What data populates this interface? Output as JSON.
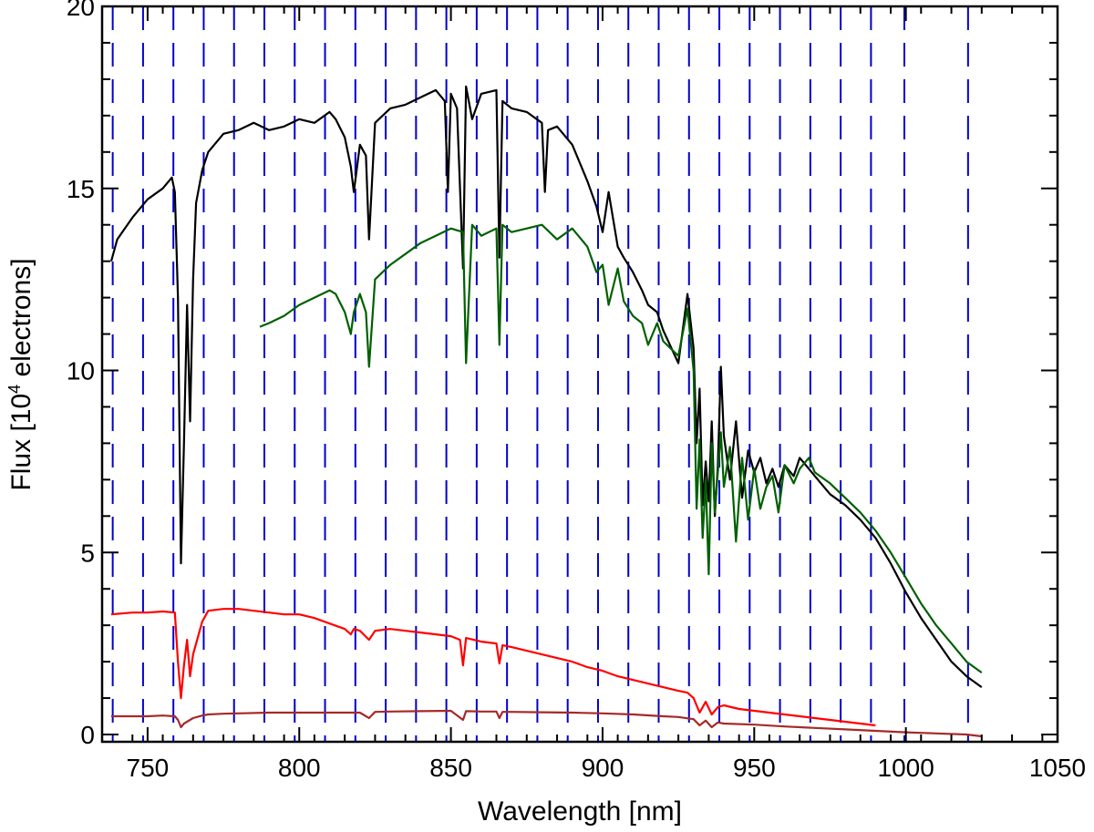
{
  "chart_data": {
    "type": "line",
    "xlabel": "Wavelength [nm]",
    "ylabel_prefix": "Flux [10",
    "ylabel_sup": "4",
    "ylabel_suffix": " electrons]",
    "xlim": [
      735,
      1050
    ],
    "ylim": [
      -0.2,
      20
    ],
    "x_ticks": [
      750,
      800,
      850,
      900,
      950,
      1000,
      1050
    ],
    "y_ticks": [
      0,
      5,
      10,
      15,
      20
    ],
    "grid": false,
    "marker_lines": {
      "color": "#0000cc",
      "style": "dashed",
      "x": [
        738.5,
        748.5,
        758.5,
        768.5,
        778.5,
        788.5,
        798.5,
        808.5,
        818.5,
        828.5,
        838.5,
        848.5,
        858.5,
        868.5,
        878.5,
        888.5,
        898.5,
        908.5,
        918.5,
        928.5,
        938.5,
        948.5,
        958.5,
        968.5,
        978.5,
        988.5,
        999.5,
        1020.5
      ]
    },
    "series": [
      {
        "color": "#000000",
        "x": [
          738,
          740,
          745,
          750,
          755,
          758,
          759,
          760,
          761,
          762,
          763,
          764,
          765,
          766,
          768,
          770,
          775,
          780,
          785,
          790,
          795,
          800,
          805,
          810,
          812,
          815,
          817,
          818,
          820,
          822,
          823,
          825,
          830,
          835,
          840,
          845,
          848,
          849,
          850,
          852,
          854,
          855,
          857,
          860,
          865,
          866,
          867,
          870,
          875,
          880,
          881,
          882,
          885,
          890,
          895,
          898,
          900,
          902,
          905,
          907,
          910,
          913,
          915,
          918,
          920,
          925,
          928,
          930,
          931,
          932,
          933,
          934,
          935,
          936,
          937,
          938,
          939,
          940,
          942,
          944,
          946,
          948,
          950,
          952,
          954,
          956,
          958,
          960,
          963,
          965,
          968,
          970,
          975,
          980,
          985,
          990,
          995,
          1000,
          1005,
          1010,
          1015,
          1020,
          1025
        ],
        "y": [
          13.0,
          13.6,
          14.2,
          14.7,
          15.0,
          15.3,
          14.9,
          12.0,
          4.7,
          8.0,
          11.8,
          8.6,
          12.5,
          14.6,
          15.5,
          16.0,
          16.5,
          16.6,
          16.8,
          16.6,
          16.7,
          16.9,
          16.8,
          17.1,
          16.9,
          16.4,
          15.6,
          14.9,
          16.2,
          15.9,
          13.6,
          16.8,
          17.2,
          17.3,
          17.5,
          17.7,
          17.4,
          14.9,
          17.6,
          17.2,
          12.8,
          17.8,
          16.9,
          17.6,
          17.7,
          13.1,
          17.4,
          17.2,
          17.1,
          16.8,
          14.9,
          16.6,
          16.7,
          16.2,
          15.2,
          14.5,
          13.8,
          14.9,
          13.4,
          13.1,
          12.7,
          12.2,
          11.8,
          11.6,
          11.1,
          10.2,
          12.1,
          10.6,
          8.0,
          9.5,
          6.3,
          7.5,
          6.4,
          8.6,
          6.0,
          7.4,
          10.1,
          8.2,
          7.0,
          8.6,
          6.5,
          7.8,
          7.2,
          7.6,
          6.9,
          7.3,
          6.8,
          7.4,
          7.1,
          7.6,
          7.3,
          7.1,
          6.6,
          6.3,
          5.9,
          5.4,
          4.7,
          3.9,
          3.2,
          2.6,
          2.0,
          1.6,
          1.3
        ]
      },
      {
        "color": "#006000",
        "x": [
          787,
          790,
          795,
          800,
          805,
          810,
          812,
          815,
          817,
          818,
          820,
          822,
          823,
          825,
          830,
          835,
          840,
          845,
          850,
          854,
          855,
          857,
          860,
          865,
          866,
          867,
          870,
          875,
          880,
          885,
          890,
          895,
          898,
          900,
          902,
          905,
          907,
          910,
          913,
          915,
          918,
          920,
          925,
          928,
          930,
          931,
          932,
          933,
          934,
          935,
          936,
          937,
          938,
          939,
          940,
          942,
          944,
          946,
          948,
          950,
          952,
          954,
          956,
          958,
          960,
          963,
          965,
          968,
          970,
          975,
          980,
          985,
          990,
          995,
          1000,
          1005,
          1010,
          1015,
          1020,
          1025
        ],
        "y": [
          11.2,
          11.3,
          11.5,
          11.8,
          12.0,
          12.2,
          12.1,
          11.6,
          11.0,
          11.6,
          12.1,
          11.6,
          10.1,
          12.5,
          12.9,
          13.2,
          13.5,
          13.7,
          13.9,
          13.8,
          10.2,
          14.0,
          13.7,
          13.9,
          10.7,
          14.0,
          13.8,
          13.9,
          14.0,
          13.6,
          13.9,
          13.4,
          12.7,
          12.9,
          11.8,
          12.8,
          11.9,
          11.5,
          11.3,
          10.7,
          11.3,
          10.8,
          10.4,
          11.7,
          10.0,
          6.2,
          8.1,
          5.4,
          7.0,
          4.4,
          8.0,
          6.1,
          7.2,
          8.3,
          6.8,
          7.9,
          5.3,
          7.6,
          5.9,
          7.3,
          6.2,
          6.8,
          7.1,
          6.1,
          7.4,
          6.9,
          7.3,
          7.6,
          7.2,
          6.9,
          6.5,
          6.1,
          5.6,
          5.0,
          4.3,
          3.6,
          3.0,
          2.5,
          2.0,
          1.7
        ]
      },
      {
        "color": "#ff0000",
        "x": [
          738,
          745,
          750,
          755,
          759,
          760,
          761,
          762,
          763,
          764,
          765,
          768,
          770,
          775,
          780,
          785,
          790,
          795,
          800,
          805,
          810,
          815,
          817,
          818,
          820,
          823,
          825,
          830,
          835,
          840,
          845,
          850,
          853,
          854,
          855,
          860,
          865,
          866,
          867,
          870,
          875,
          880,
          885,
          890,
          895,
          900,
          905,
          910,
          915,
          920,
          925,
          928,
          930,
          932,
          934,
          936,
          938,
          940,
          945,
          950,
          955,
          960,
          965,
          970,
          975,
          980,
          985,
          990
        ],
        "y": [
          3.3,
          3.35,
          3.35,
          3.38,
          3.35,
          2.0,
          1.0,
          1.9,
          2.6,
          1.6,
          2.2,
          3.1,
          3.4,
          3.45,
          3.45,
          3.4,
          3.35,
          3.3,
          3.3,
          3.2,
          3.05,
          2.9,
          2.75,
          2.9,
          2.85,
          2.6,
          2.85,
          2.9,
          2.85,
          2.8,
          2.75,
          2.7,
          2.6,
          1.9,
          2.65,
          2.55,
          2.5,
          1.95,
          2.45,
          2.4,
          2.3,
          2.2,
          2.1,
          2.0,
          1.85,
          1.75,
          1.6,
          1.5,
          1.4,
          1.3,
          1.2,
          1.15,
          1.0,
          0.6,
          0.9,
          0.55,
          0.75,
          0.8,
          0.7,
          0.65,
          0.6,
          0.55,
          0.5,
          0.45,
          0.4,
          0.35,
          0.3,
          0.25
        ]
      },
      {
        "color": "#a52a2a",
        "x": [
          738,
          745,
          750,
          755,
          759,
          760,
          761,
          762,
          765,
          768,
          770,
          775,
          780,
          790,
          800,
          810,
          820,
          823,
          825,
          830,
          840,
          850,
          854,
          855,
          860,
          865,
          866,
          867,
          870,
          880,
          890,
          900,
          910,
          920,
          925,
          930,
          932,
          934,
          936,
          938,
          940,
          950,
          960,
          970,
          980,
          990,
          1000,
          1010,
          1020,
          1025
        ],
        "y": [
          0.5,
          0.5,
          0.5,
          0.52,
          0.5,
          0.4,
          0.2,
          0.3,
          0.45,
          0.52,
          0.55,
          0.57,
          0.58,
          0.6,
          0.6,
          0.6,
          0.6,
          0.45,
          0.62,
          0.63,
          0.64,
          0.65,
          0.4,
          0.64,
          0.63,
          0.63,
          0.45,
          0.62,
          0.62,
          0.61,
          0.6,
          0.58,
          0.55,
          0.5,
          0.48,
          0.42,
          0.25,
          0.38,
          0.2,
          0.33,
          0.3,
          0.27,
          0.22,
          0.18,
          0.14,
          0.1,
          0.06,
          0.03,
          0.0,
          -0.05
        ]
      }
    ]
  }
}
